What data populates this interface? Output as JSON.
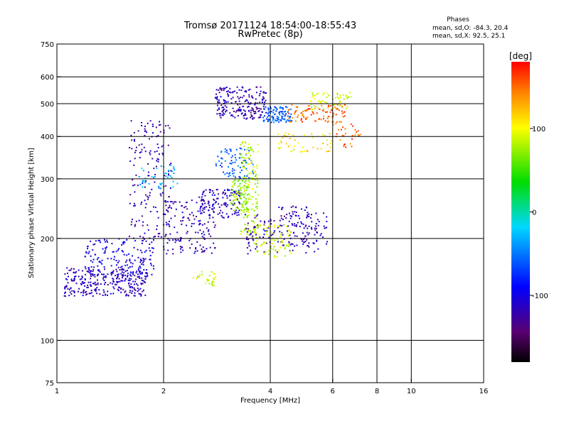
{
  "chart_data": {
    "type": "scatter",
    "title": "Tromsø 20171124 18:54:00-18:55:43",
    "subtitle": "RwPretec (8p)",
    "xlabel": "Frequency [MHz]",
    "ylabel": "Stationary phase Virtual Height [km]",
    "x_scale": "log",
    "y_scale": "log",
    "xlim": [
      1,
      16
    ],
    "ylim": [
      75,
      750
    ],
    "x_ticks": [
      "1",
      "2",
      "4",
      "6",
      "8",
      "10",
      "16"
    ],
    "x_tick_values": [
      1,
      2,
      4,
      6,
      8,
      10,
      16
    ],
    "x_grid": [
      2,
      4,
      6,
      8,
      10
    ],
    "y_ticks": [
      "75",
      "100",
      "200",
      "300",
      "400",
      "500",
      "600",
      "750"
    ],
    "y_tick_values": [
      75,
      100,
      200,
      300,
      400,
      500,
      600,
      750
    ],
    "y_grid": [
      100,
      200,
      300,
      400,
      500,
      600
    ],
    "grid": true,
    "stats": {
      "heading": "Phases",
      "line_o": "mean, sd,O: -84.3, 20.4",
      "line_x": "mean, sd,X:  92.5, 25.1"
    },
    "colorbar": {
      "label": "[deg]",
      "range": [
        -180,
        180
      ],
      "tick_labels": [
        "100",
        "0",
        "-100"
      ],
      "tick_values": [
        100,
        0,
        -100
      ],
      "colormap": "rainbow (black-purple-blue-cyan-green-yellow-red)"
    },
    "traces": [
      {
        "f": [
          1.05,
          1.8
        ],
        "h": [
          135,
          165
        ],
        "phase": -115,
        "count": 300
      },
      {
        "f": [
          1.2,
          1.9
        ],
        "h": [
          155,
          200
        ],
        "phase": -100,
        "count": 150
      },
      {
        "f": [
          1.6,
          2.1
        ],
        "h": [
          200,
          450
        ],
        "phase": -120,
        "count": 160
      },
      {
        "f": [
          1.7,
          2.2
        ],
        "h": [
          280,
          330
        ],
        "phase": -30,
        "count": 40
      },
      {
        "f": [
          2.0,
          2.8
        ],
        "h": [
          180,
          260
        ],
        "phase": -120,
        "count": 150
      },
      {
        "f": [
          2.5,
          3.3
        ],
        "h": [
          230,
          280
        ],
        "phase": -110,
        "count": 120
      },
      {
        "f": [
          2.8,
          3.6
        ],
        "h": [
          300,
          370
        ],
        "phase": -60,
        "count": 80
      },
      {
        "f": [
          2.8,
          3.9
        ],
        "h": [
          450,
          560
        ],
        "phase": -120,
        "count": 200
      },
      {
        "f": [
          3.8,
          4.6
        ],
        "h": [
          440,
          490
        ],
        "phase": -60,
        "count": 100
      },
      {
        "f": [
          4.5,
          6.5
        ],
        "h": [
          440,
          500
        ],
        "phase": 150,
        "count": 100
      },
      {
        "f": [
          5.2,
          6.8
        ],
        "h": [
          480,
          540
        ],
        "phase": 90,
        "count": 60
      },
      {
        "f": [
          3.3,
          3.7
        ],
        "h": [
          200,
          390
        ],
        "phase": 80,
        "count": 150
      },
      {
        "f": [
          3.1,
          3.5
        ],
        "h": [
          240,
          300
        ],
        "phase": 70,
        "count": 80
      },
      {
        "f": [
          3.4,
          5.5
        ],
        "h": [
          180,
          240
        ],
        "phase": -120,
        "count": 120
      },
      {
        "f": [
          4.2,
          5.8
        ],
        "h": [
          190,
          250
        ],
        "phase": -110,
        "count": 80
      },
      {
        "f": [
          3.6,
          4.6
        ],
        "h": [
          175,
          220
        ],
        "phase": 85,
        "count": 80
      },
      {
        "f": [
          4.2,
          6.0
        ],
        "h": [
          360,
          410
        ],
        "phase": 110,
        "count": 50
      },
      {
        "f": [
          2.4,
          2.8
        ],
        "h": [
          145,
          160
        ],
        "phase": 95,
        "count": 30
      },
      {
        "f": [
          6.0,
          7.2
        ],
        "h": [
          370,
          440
        ],
        "phase": 150,
        "count": 30
      }
    ]
  }
}
